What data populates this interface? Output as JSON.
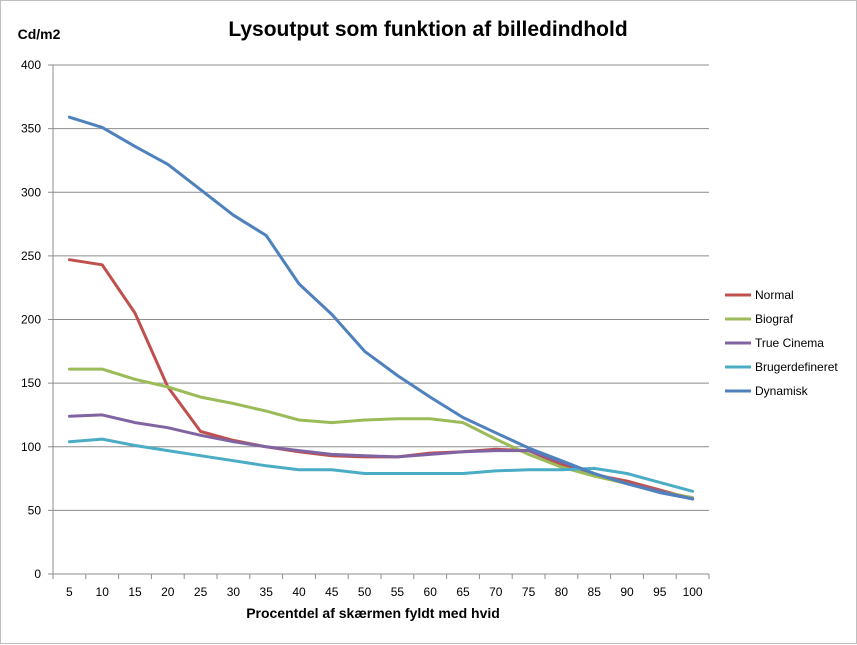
{
  "chart_data": {
    "type": "line",
    "title": "Lysoutput som funktion af billedindhold",
    "xlabel": "Procentdel af skærmen fyldt med hvid",
    "ylabel": "Cd/m2",
    "ylim": [
      0,
      400
    ],
    "yticks": [
      0,
      50,
      100,
      150,
      200,
      250,
      300,
      350,
      400
    ],
    "grid": true,
    "legend_position": "right",
    "categories": [
      "5",
      "10",
      "15",
      "20",
      "25",
      "30",
      "35",
      "40",
      "45",
      "50",
      "55",
      "60",
      "65",
      "70",
      "75",
      "80",
      "85",
      "90",
      "95",
      "100"
    ],
    "series": [
      {
        "name": "Normal",
        "color": "#C0504D",
        "values": [
          247,
          243,
          205,
          147,
          112,
          105,
          100,
          96,
          93,
          92,
          92,
          95,
          96,
          98,
          97,
          86,
          78,
          73,
          66,
          59
        ]
      },
      {
        "name": "Biograf",
        "color": "#9BBB59",
        "values": [
          161,
          161,
          153,
          147,
          139,
          134,
          128,
          121,
          119,
          121,
          122,
          122,
          119,
          106,
          94,
          84,
          77,
          71,
          65,
          60
        ]
      },
      {
        "name": "True Cinema",
        "color": "#8064A2",
        "values": [
          124,
          125,
          119,
          115,
          109,
          104,
          100,
          97,
          94,
          93,
          92,
          94,
          96,
          97,
          97,
          88,
          79,
          71,
          65,
          59
        ]
      },
      {
        "name": "Brugerdefineret",
        "color": "#4BACC6",
        "values": [
          104,
          106,
          101,
          97,
          93,
          89,
          85,
          82,
          82,
          79,
          79,
          79,
          79,
          81,
          82,
          82,
          83,
          79,
          72,
          65
        ]
      },
      {
        "name": "Dynamisk",
        "color": "#4F81BD",
        "values": [
          359,
          351,
          336,
          322,
          302,
          282,
          266,
          228,
          204,
          175,
          156,
          139,
          123,
          111,
          99,
          89,
          79,
          71,
          64,
          59
        ]
      }
    ]
  }
}
